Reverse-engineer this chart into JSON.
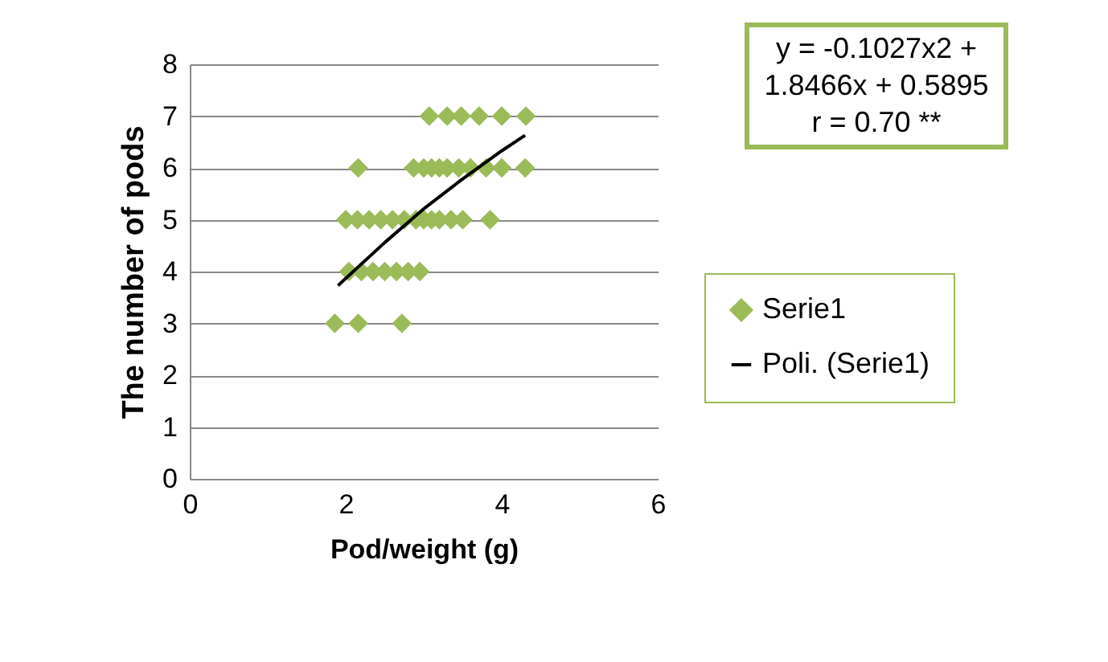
{
  "chart_data": {
    "type": "scatter",
    "xlabel": "Pod/weight (g)",
    "ylabel": "The number of pods",
    "annotations": [
      "y = -0.1027x2 + 1.8466x + 0.5895 r = 0.70 **"
    ],
    "xlim": [
      0,
      6
    ],
    "xticks": [
      0,
      2,
      4,
      6
    ],
    "ylim": [
      0,
      8
    ],
    "yticks": [
      0,
      1,
      2,
      3,
      4,
      5,
      6,
      7,
      8
    ],
    "grid": "y",
    "legend": "right",
    "series": [
      {
        "name": "Serie1",
        "type": "scatter",
        "marker": "diamond",
        "color": "#9bbb59",
        "x": [
          3.07,
          3.3,
          3.48,
          3.71,
          4.0,
          4.31,
          2.16,
          2.87,
          3.0,
          3.1,
          3.2,
          3.3,
          3.45,
          3.6,
          3.8,
          4.0,
          4.3,
          2.0,
          2.15,
          2.3,
          2.45,
          2.6,
          2.75,
          2.9,
          3.0,
          3.1,
          3.2,
          3.35,
          3.5,
          3.85,
          2.04,
          2.2,
          2.35,
          2.5,
          2.65,
          2.8,
          2.95,
          1.86,
          2.16,
          2.72
        ],
        "values": [
          7,
          7,
          7,
          7,
          7,
          7,
          6,
          6,
          6,
          6,
          6,
          6,
          6,
          6,
          6,
          6,
          6,
          5,
          5,
          5,
          5,
          5,
          5,
          5,
          5,
          5,
          5,
          5,
          5,
          5,
          4,
          4,
          4,
          4,
          4,
          4,
          4,
          3,
          3,
          3
        ]
      },
      {
        "name": "Poli. (Serie1)",
        "type": "line",
        "marker": "none",
        "color": "#000000",
        "x": [
          1.9,
          2.5,
          3.0,
          3.5,
          4.0,
          4.3
        ],
        "values": [
          3.73,
          4.56,
          5.21,
          5.79,
          6.33,
          6.63
        ]
      }
    ]
  }
}
